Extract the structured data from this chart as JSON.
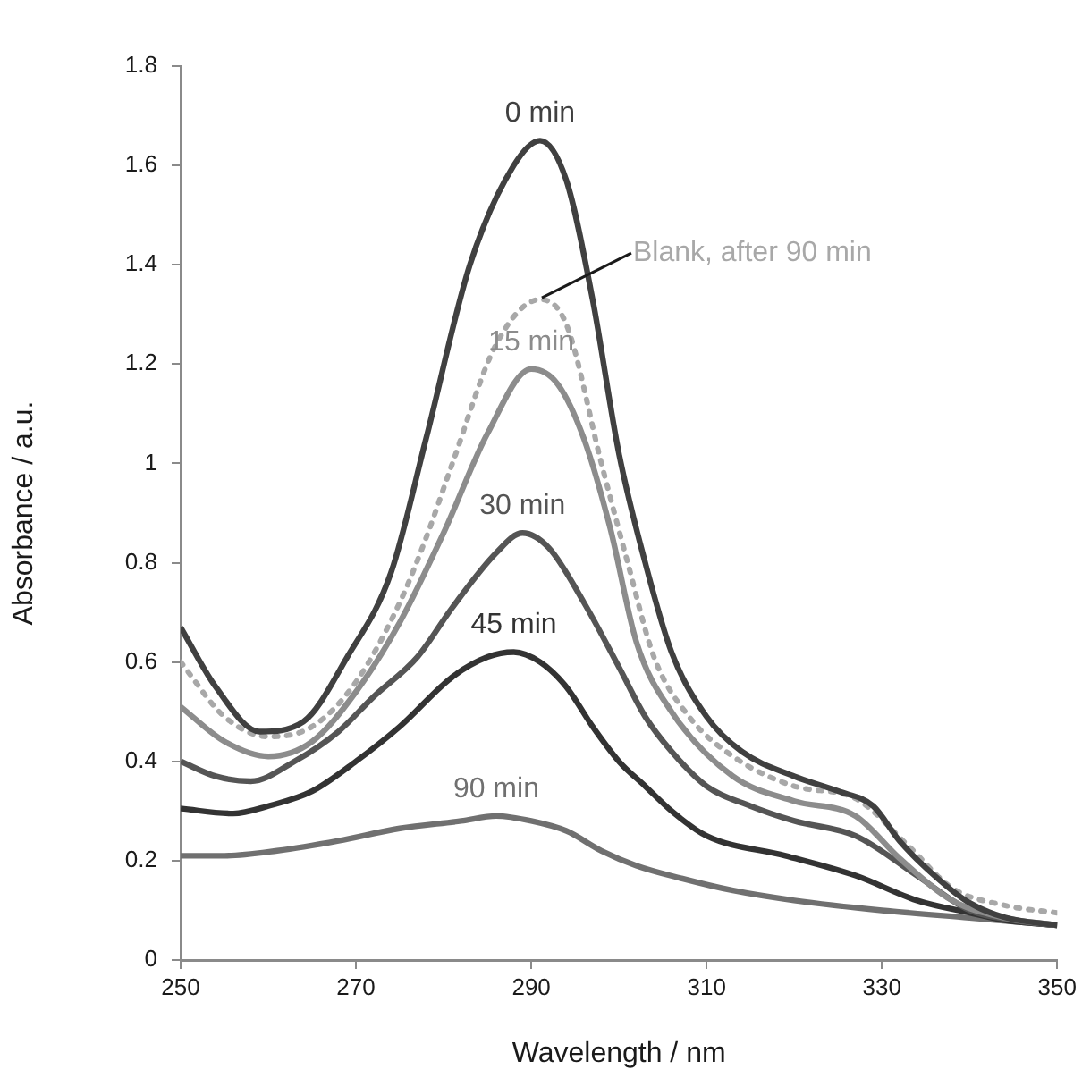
{
  "chart_data": {
    "type": "line",
    "xlabel": "Wavelength / nm",
    "ylabel": "Absorbance / a.u.",
    "xlim": [
      250,
      350
    ],
    "xticks": [
      250,
      270,
      290,
      310,
      330,
      350
    ],
    "ylim": [
      0,
      1.8
    ],
    "yticks": [
      0,
      0.2,
      0.4,
      0.6,
      0.8,
      1,
      1.2,
      1.4,
      1.6,
      1.8
    ],
    "grid": false,
    "legend": false,
    "marker": "none",
    "series": [
      {
        "name": "0 min",
        "color": "#404040",
        "line_style": "solid",
        "x": [
          250,
          254,
          259,
          264,
          269,
          274,
          278,
          283,
          288,
          291,
          294,
          297,
          300,
          303,
          306,
          310,
          314,
          320,
          325,
          329,
          332,
          336,
          340,
          344,
          350
        ],
        "values": [
          0.67,
          0.55,
          0.46,
          0.48,
          0.61,
          0.78,
          1.05,
          1.4,
          1.6,
          1.65,
          1.57,
          1.33,
          1.02,
          0.8,
          0.62,
          0.49,
          0.42,
          0.37,
          0.34,
          0.31,
          0.24,
          0.17,
          0.115,
          0.086,
          0.07
        ]
      },
      {
        "name": "Blank, after 90 min",
        "color": "#a8a8a8",
        "line_style": "dotted",
        "x": [
          250,
          255,
          260,
          265,
          270,
          275,
          278,
          281,
          286,
          291,
          294,
          298,
          301,
          304,
          308,
          313,
          320,
          327,
          333,
          338,
          344,
          350
        ],
        "values": [
          0.6,
          0.49,
          0.45,
          0.47,
          0.56,
          0.72,
          0.85,
          1.0,
          1.24,
          1.33,
          1.28,
          1.0,
          0.8,
          0.61,
          0.49,
          0.41,
          0.35,
          0.325,
          0.23,
          0.145,
          0.11,
          0.095
        ]
      },
      {
        "name": "15 min",
        "color": "#8c8c8c",
        "line_style": "solid",
        "x": [
          250,
          255,
          260,
          265,
          270,
          275,
          280,
          285,
          290,
          293,
          296,
          299,
          302,
          306,
          313,
          320,
          327,
          332,
          338,
          344,
          350
        ],
        "values": [
          0.51,
          0.44,
          0.41,
          0.44,
          0.54,
          0.68,
          0.86,
          1.06,
          1.19,
          1.16,
          1.05,
          0.87,
          0.64,
          0.5,
          0.37,
          0.32,
          0.29,
          0.205,
          0.12,
          0.085,
          0.07
        ]
      },
      {
        "name": "30 min",
        "color": "#555555",
        "line_style": "solid",
        "x": [
          250,
          254,
          258,
          263,
          268,
          272,
          277,
          281,
          286,
          289,
          292,
          296,
          300,
          303,
          306,
          310,
          315,
          320,
          327,
          334,
          340,
          345,
          350
        ],
        "values": [
          0.4,
          0.37,
          0.36,
          0.4,
          0.46,
          0.53,
          0.61,
          0.71,
          0.82,
          0.86,
          0.83,
          0.72,
          0.59,
          0.49,
          0.42,
          0.35,
          0.31,
          0.28,
          0.25,
          0.17,
          0.1,
          0.08,
          0.07
        ]
      },
      {
        "name": "45 min",
        "color": "#333333",
        "line_style": "solid",
        "x": [
          250,
          256,
          260,
          265,
          270,
          275,
          281,
          285,
          288,
          291,
          294,
          297,
          300,
          303,
          306,
          310,
          319,
          327,
          334,
          340,
          344,
          350
        ],
        "values": [
          0.305,
          0.295,
          0.31,
          0.34,
          0.4,
          0.47,
          0.57,
          0.61,
          0.62,
          0.6,
          0.55,
          0.47,
          0.4,
          0.35,
          0.3,
          0.25,
          0.21,
          0.17,
          0.12,
          0.095,
          0.08,
          0.07
        ]
      },
      {
        "name": "90 min",
        "color": "#707070",
        "line_style": "solid",
        "x": [
          250,
          255,
          261,
          268,
          275,
          282,
          286,
          290,
          294,
          298,
          302,
          307,
          313,
          320,
          330,
          340,
          350
        ],
        "values": [
          0.21,
          0.21,
          0.22,
          0.24,
          0.265,
          0.28,
          0.29,
          0.28,
          0.26,
          0.22,
          0.19,
          0.165,
          0.14,
          0.12,
          0.1,
          0.085,
          0.07
        ]
      }
    ]
  }
}
